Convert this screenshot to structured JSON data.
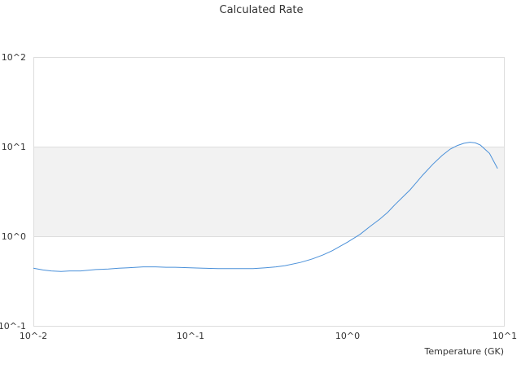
{
  "chart_data": {
    "type": "line",
    "title": "Calculated Rate",
    "xlabel": "Temperature (GK)",
    "ylabel": "",
    "x_scale": "log",
    "y_scale": "log",
    "xlim": [
      0.01,
      10
    ],
    "ylim": [
      0.1,
      100
    ],
    "x_ticks": [
      "10^-2",
      "10^-1",
      "10^0",
      "10^1"
    ],
    "y_ticks": [
      "10^-1",
      "10^0",
      "10^1",
      "10^2"
    ],
    "grid": true,
    "band": {
      "y_from": 1,
      "y_to": 10,
      "color": "#f2f2f2"
    },
    "colors": {
      "line": "#4a90d9",
      "grid": "#dddddd",
      "text": "#333333"
    },
    "series": [
      {
        "x": [
          0.01,
          0.0115,
          0.013,
          0.015,
          0.017,
          0.02,
          0.025,
          0.03,
          0.035,
          0.04,
          0.05,
          0.06,
          0.07,
          0.08,
          0.1,
          0.12,
          0.15,
          0.2,
          0.25,
          0.3,
          0.35,
          0.4,
          0.5,
          0.6,
          0.7,
          0.8,
          1.0,
          1.2,
          1.4,
          1.6,
          1.8,
          2.0,
          2.5,
          3.0,
          3.5,
          4.0,
          4.5,
          5.0,
          5.5,
          6.0,
          6.5,
          7.0,
          8.0,
          9.0
        ],
        "y": [
          0.44,
          0.42,
          0.41,
          0.405,
          0.41,
          0.41,
          0.425,
          0.43,
          0.44,
          0.445,
          0.455,
          0.455,
          0.45,
          0.45,
          0.445,
          0.44,
          0.435,
          0.435,
          0.435,
          0.445,
          0.455,
          0.47,
          0.51,
          0.56,
          0.62,
          0.69,
          0.86,
          1.05,
          1.3,
          1.55,
          1.85,
          2.25,
          3.3,
          4.8,
          6.4,
          8.0,
          9.4,
          10.3,
          10.9,
          11.2,
          11.0,
          10.4,
          8.4,
          5.7
        ]
      }
    ]
  }
}
